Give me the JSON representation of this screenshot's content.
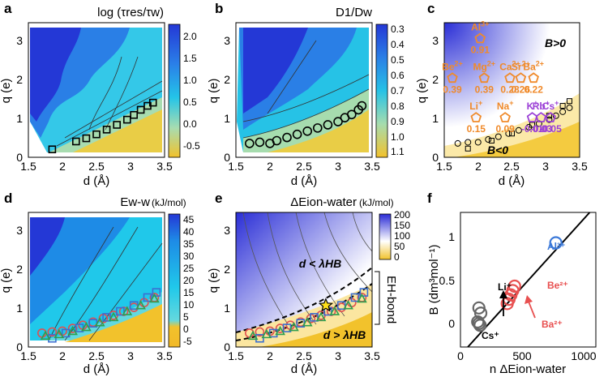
{
  "chart_data": [
    {
      "panel": "a",
      "type": "heatmap",
      "title": "log (τres/τw)",
      "xlabel": "d (Å)",
      "ylabel": "q (e)",
      "xlim": [
        1.5,
        3.5
      ],
      "ylim": [
        0,
        3.4
      ],
      "xticks": [
        "1.5",
        "2",
        "2.5",
        "3",
        "3.5"
      ],
      "yticks": [
        "0",
        "1",
        "2",
        "3"
      ],
      "colorbar_ticks": [
        "2.0",
        "1.5",
        "1.0",
        "0.5",
        "0.0",
        "-0.5"
      ],
      "squares_x": [
        1.85,
        2.2,
        2.35,
        2.5,
        2.65,
        2.8,
        2.95,
        3.05,
        3.15,
        3.25,
        3.33
      ],
      "squares_y": [
        0.2,
        0.4,
        0.48,
        0.58,
        0.7,
        0.82,
        0.95,
        1.07,
        1.2,
        1.3,
        1.38
      ]
    },
    {
      "panel": "b",
      "type": "heatmap",
      "title": "D1/Dw",
      "xlabel": "d (Å)",
      "ylabel": "q (e)",
      "xlim": [
        1.5,
        3.5
      ],
      "ylim": [
        0,
        3.4
      ],
      "xticks": [
        "1.5",
        "2",
        "2.5",
        "3",
        "3.5"
      ],
      "yticks": [
        "0",
        "1",
        "2",
        "3"
      ],
      "colorbar_ticks": [
        "0.3",
        "0.4",
        "0.5",
        "0.6",
        "0.7",
        "0.8",
        "0.9",
        "1.0",
        "1.1"
      ],
      "circles_x": [
        1.7,
        1.85,
        2.0,
        2.1,
        2.25,
        2.4,
        2.55,
        2.7,
        2.85,
        3.0,
        3.1,
        3.2,
        3.3,
        3.35
      ],
      "circles_y": [
        0.35,
        0.38,
        0.35,
        0.42,
        0.5,
        0.58,
        0.66,
        0.74,
        0.82,
        0.9,
        1.0,
        1.08,
        1.2,
        1.3
      ]
    },
    {
      "panel": "c",
      "type": "scatter",
      "xlabel": "d (Å)",
      "ylabel": "q (e)",
      "xlim": [
        1.5,
        3.5
      ],
      "ylim": [
        0,
        3.4
      ],
      "xticks": [
        "1.5",
        "2",
        "2.5",
        "3",
        "3.5"
      ],
      "yticks": [
        "0",
        "1",
        "2",
        "3"
      ],
      "region_labels": [
        "B>0",
        "B<0"
      ],
      "ions": [
        {
          "name": "Al",
          "charge": "3+",
          "value": "0.91",
          "d": 2.03,
          "q": 3,
          "color": "#f08a2a"
        },
        {
          "name": "Be",
          "charge": "2+",
          "value": "0.39",
          "d": 1.62,
          "q": 2,
          "color": "#f08a2a"
        },
        {
          "name": "Mg",
          "charge": "2+",
          "value": "0.39",
          "d": 2.09,
          "q": 2,
          "color": "#f08a2a"
        },
        {
          "name": "Ca",
          "charge": "2+",
          "value": "0.28",
          "d": 2.47,
          "q": 2,
          "color": "#f08a2a"
        },
        {
          "name": "Sr",
          "charge": "2+",
          "value": "0.26",
          "d": 2.63,
          "q": 2,
          "color": "#f08a2a"
        },
        {
          "name": "Ba",
          "charge": "2+",
          "value": "0.22",
          "d": 2.82,
          "q": 2,
          "color": "#f08a2a"
        },
        {
          "name": "Li",
          "charge": "+",
          "value": "0.15",
          "d": 1.97,
          "q": 1,
          "color": "#f08a2a"
        },
        {
          "name": "Na",
          "charge": "+",
          "value": "0.09",
          "d": 2.4,
          "q": 1,
          "color": "#f08a2a"
        },
        {
          "name": "K",
          "charge": "+",
          "value": "-0.01",
          "d": 2.8,
          "q": 1,
          "color": "#9b3fd6"
        },
        {
          "name": "Rb",
          "charge": "+",
          "value": "-0.03",
          "d": 2.93,
          "q": 1,
          "color": "#9b3fd6"
        },
        {
          "name": "Cs",
          "charge": "+",
          "value": "-0.05",
          "d": 3.07,
          "q": 1,
          "color": "#9b3fd6"
        }
      ],
      "circles_x": [
        1.7,
        1.85,
        2.0,
        2.15,
        2.3,
        2.45,
        2.6,
        2.75,
        2.9,
        3.05,
        3.15,
        3.25,
        3.35
      ],
      "circles_y": [
        0.35,
        0.38,
        0.38,
        0.45,
        0.52,
        0.6,
        0.68,
        0.76,
        0.85,
        0.95,
        1.05,
        1.15,
        1.25
      ],
      "squares_x": [
        1.85,
        2.2,
        2.5,
        2.8,
        3.05,
        3.25,
        3.35
      ],
      "squares_y": [
        0.22,
        0.42,
        0.6,
        0.82,
        1.05,
        1.3,
        1.42
      ]
    },
    {
      "panel": "d",
      "type": "heatmap",
      "title": "Ew-w",
      "title_unit": "(kJ/mol)",
      "xlabel": "d (Å)",
      "ylabel": "q (e)",
      "xlim": [
        1.5,
        3.5
      ],
      "ylim": [
        0,
        3.4
      ],
      "xticks": [
        "1.5",
        "2",
        "2.5",
        "3",
        "3.5"
      ],
      "yticks": [
        "0",
        "1",
        "2",
        "3"
      ],
      "colorbar_ticks": [
        "45",
        "40",
        "35",
        "30",
        "25",
        "20",
        "15",
        "10",
        "5",
        "0",
        "-5"
      ],
      "series": [
        {
          "name": "circles",
          "color": "#e05050",
          "x": [
            1.7,
            1.85,
            2.0,
            2.15,
            2.3,
            2.45,
            2.6,
            2.75,
            2.9,
            3.05,
            3.2,
            3.35
          ],
          "y": [
            0.35,
            0.38,
            0.4,
            0.47,
            0.55,
            0.63,
            0.72,
            0.8,
            0.9,
            1.0,
            1.12,
            1.25
          ]
        },
        {
          "name": "squares",
          "color": "#3a6fd0",
          "x": [
            1.85,
            2.05,
            2.25,
            2.45,
            2.65,
            2.85,
            3.05,
            3.25,
            3.38
          ],
          "y": [
            0.22,
            0.35,
            0.48,
            0.6,
            0.75,
            0.9,
            1.05,
            1.25,
            1.38
          ]
        },
        {
          "name": "triangles",
          "color": "#2f9e4f",
          "x": [
            1.75,
            1.95,
            2.15,
            2.35,
            2.55,
            2.75,
            2.95,
            3.15,
            3.35
          ],
          "y": [
            0.28,
            0.32,
            0.4,
            0.5,
            0.62,
            0.75,
            0.9,
            1.05,
            1.22
          ]
        }
      ]
    },
    {
      "panel": "e",
      "type": "heatmap",
      "title": "ΔEion-water",
      "title_unit": "(kJ/mol)",
      "xlabel": "d (Å)",
      "ylabel": "q (e)",
      "xlim": [
        1.5,
        3.5
      ],
      "ylim": [
        0,
        3.4
      ],
      "xticks": [
        "1.5",
        "2",
        "2.5",
        "3",
        "3.5"
      ],
      "yticks": [
        "0",
        "1",
        "2",
        "3"
      ],
      "colorbar_ticks": [
        "200",
        "150",
        "100",
        "50",
        "0"
      ],
      "region_labels": [
        "d < λHB",
        "d > λHB"
      ],
      "bracket_label": "EH-bond",
      "star": {
        "d": 2.82,
        "q": 1.05
      },
      "series": [
        {
          "name": "circles",
          "color": "#e05050",
          "x": [
            1.7,
            1.85,
            2.0,
            2.15,
            2.3,
            2.45,
            2.6,
            2.75,
            2.9,
            3.05,
            3.2,
            3.35
          ],
          "y": [
            0.35,
            0.38,
            0.4,
            0.47,
            0.55,
            0.63,
            0.72,
            0.8,
            0.9,
            1.0,
            1.12,
            1.25
          ]
        },
        {
          "name": "squares",
          "color": "#3a6fd0",
          "x": [
            1.85,
            2.05,
            2.25,
            2.45,
            2.65,
            2.85,
            3.05,
            3.25,
            3.38
          ],
          "y": [
            0.22,
            0.35,
            0.48,
            0.6,
            0.75,
            0.9,
            1.05,
            1.25,
            1.38
          ]
        },
        {
          "name": "triangles",
          "color": "#2f9e4f",
          "x": [
            1.75,
            1.95,
            2.15,
            2.35,
            2.55,
            2.75,
            2.95,
            3.15,
            3.35
          ],
          "y": [
            0.28,
            0.32,
            0.4,
            0.5,
            0.62,
            0.75,
            0.9,
            1.05,
            1.22
          ]
        }
      ]
    },
    {
      "panel": "f",
      "type": "scatter",
      "xlabel": "n ΔEion-water",
      "ylabel": "B (dm³mol⁻¹)",
      "xlim": [
        0,
        1100
      ],
      "ylim": [
        -0.3,
        1.25
      ],
      "xticks": [
        "0",
        "500",
        "1000"
      ],
      "yticks": [
        "0",
        "0.5",
        "1"
      ],
      "fit_line": {
        "x": [
          60,
          1050
        ],
        "y": [
          -0.3,
          1.25
        ]
      },
      "groups": [
        {
          "label": "Al³⁺",
          "color": "#3a78d8",
          "points": [
            [
              775,
              0.9
            ]
          ]
        },
        {
          "label": "Be²⁺",
          "color": "#e85050",
          "points": [
            [
              380,
              0.2
            ],
            [
              395,
              0.25
            ],
            [
              410,
              0.3
            ],
            [
              425,
              0.35
            ],
            [
              440,
              0.4
            ]
          ]
        },
        {
          "label": "Ba²⁺",
          "color": "#e85050",
          "points": []
        },
        {
          "label": "Li⁺",
          "color": "#666666",
          "points": [
            [
              150,
              0.15
            ],
            [
              165,
              0.09
            ]
          ]
        },
        {
          "label": "Cs⁺",
          "color": "#666666",
          "points": [
            [
              140,
              -0.01
            ],
            [
              150,
              -0.03
            ],
            [
              160,
              -0.05
            ]
          ]
        }
      ]
    }
  ]
}
